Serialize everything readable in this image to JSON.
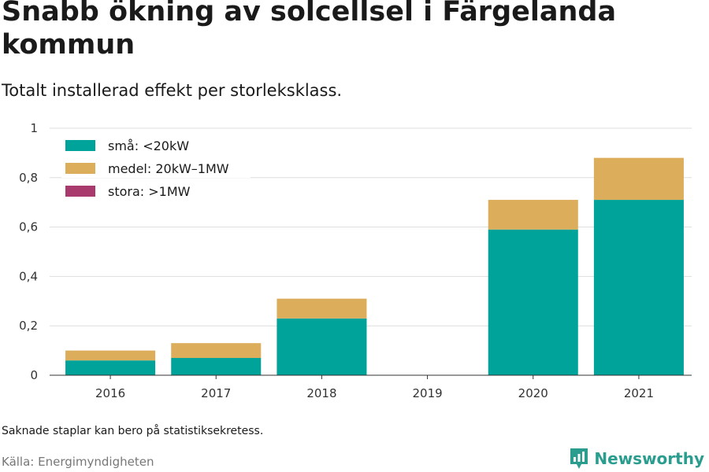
{
  "title": "Snabb ökning av solcellsel i Färgelanda kommun",
  "subtitle": "Totalt installerad effekt per storleksklass.",
  "note": "Saknade staplar kan bero på statistiksekretess.",
  "source": "Källa: Energimyndigheten",
  "brand": "Newsworthy",
  "chart_data": {
    "type": "bar",
    "stacked": true,
    "categories": [
      "2016",
      "2017",
      "2018",
      "2019",
      "2020",
      "2021"
    ],
    "series": [
      {
        "name": "små: <20kW",
        "color": "#00a39a",
        "values": [
          0.06,
          0.07,
          0.23,
          null,
          0.59,
          0.71
        ]
      },
      {
        "name": "medel: 20kW–1MW",
        "color": "#dcad5a",
        "values": [
          0.04,
          0.06,
          0.08,
          null,
          0.12,
          0.17
        ]
      },
      {
        "name": "stora: >1MW",
        "color": "#a83a6e",
        "values": [
          0,
          0,
          0,
          null,
          0,
          0
        ]
      }
    ],
    "ylim": [
      0,
      1
    ],
    "yticks": [
      0,
      0.2,
      0.4,
      0.6,
      0.8,
      1
    ],
    "ytick_labels": [
      "0",
      "0,2",
      "0,4",
      "0,6",
      "0,8",
      "1"
    ],
    "grid": true,
    "legend": "top-left"
  }
}
